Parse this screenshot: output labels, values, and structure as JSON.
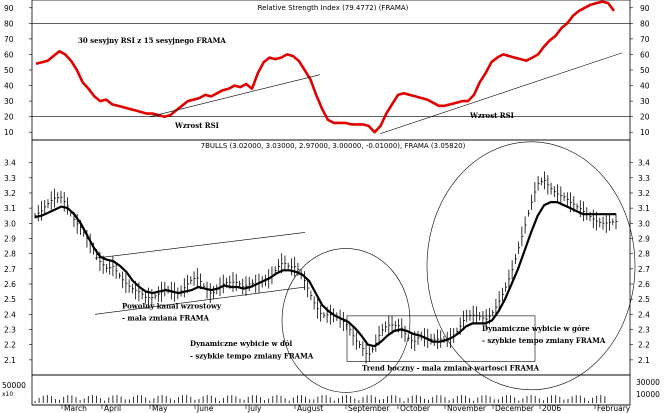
{
  "chart_data": [
    {
      "type": "line",
      "title": "Relative Strength Index (79.4772) (FRAMA)",
      "ylim": [
        5,
        95
      ],
      "yticks": [
        10,
        20,
        30,
        40,
        50,
        60,
        70,
        80,
        90
      ],
      "reference_lines": [
        20,
        80
      ],
      "series": [
        {
          "color": "#e00000",
          "x": [
            0,
            2,
            4,
            6,
            8,
            10,
            12,
            14,
            16,
            18,
            20,
            22,
            24,
            26,
            28,
            30,
            32,
            34,
            36,
            38,
            40,
            42,
            44,
            46,
            48,
            50,
            52,
            54,
            56,
            58,
            60,
            62,
            64,
            66,
            68,
            70,
            72,
            74,
            76,
            78,
            80,
            82,
            84,
            86,
            88,
            90,
            92,
            94,
            96,
            98,
            100,
            102,
            104,
            106,
            108,
            110,
            112,
            114,
            116,
            118,
            120,
            122,
            124,
            126,
            128,
            130,
            132,
            134,
            136,
            138,
            140,
            142,
            144,
            146,
            148,
            150,
            152,
            154,
            156,
            158,
            160,
            162,
            164,
            166,
            168,
            170,
            172,
            174,
            176,
            178,
            180,
            182,
            184,
            186,
            188,
            190,
            192,
            194,
            196,
            198,
            200,
            202,
            204,
            206,
            208,
            210,
            212,
            214,
            216,
            218,
            220,
            222,
            224,
            226,
            228,
            230,
            232,
            234,
            236,
            238,
            240,
            242,
            244,
            246,
            248,
            250,
            252,
            254,
            256,
            258,
            260,
            262,
            264,
            266,
            268,
            270,
            272,
            274,
            276,
            278,
            280,
            282,
            284,
            286,
            288,
            290,
            292,
            294,
            296,
            298
          ],
          "values": [
            54,
            55,
            56,
            59,
            62,
            60,
            56,
            50,
            42,
            38,
            33,
            30,
            31,
            28,
            27,
            26,
            25,
            24,
            23,
            22,
            22,
            21,
            20,
            21,
            24,
            27,
            30,
            31,
            32,
            34,
            33,
            35,
            37,
            38,
            40,
            39,
            41,
            38,
            48,
            55,
            58,
            57,
            58,
            60,
            59,
            56,
            50,
            44,
            34,
            25,
            18,
            16,
            16,
            16,
            15,
            15,
            15,
            14,
            10,
            14,
            22,
            28,
            34,
            35,
            34,
            33,
            32,
            31,
            29,
            27,
            27,
            28,
            29,
            30,
            30,
            34,
            42,
            48,
            55,
            58,
            60,
            59,
            58,
            57,
            56,
            58,
            60,
            65,
            69,
            72,
            77,
            80,
            85,
            88,
            90,
            92,
            93,
            94,
            93,
            88,
            84,
            82,
            82,
            80,
            80,
            80,
            80,
            80,
            80,
            80,
            80,
            80,
            80,
            80,
            80,
            80,
            80,
            80,
            80,
            80,
            80,
            80,
            80,
            80,
            80,
            80,
            80,
            80,
            80,
            80,
            80,
            80,
            80,
            80,
            80,
            80,
            80,
            80,
            80,
            80,
            80,
            80,
            80,
            80,
            80,
            80,
            80,
            80,
            80,
            80
          ]
        }
      ],
      "annotations": [
        "30 sesyjny RSI z 15 sesyjnego FRAMA",
        "Wzrost RSI",
        "Wzrost RSI"
      ]
    },
    {
      "type": "ohlc",
      "title": "7BULLS (3.02000, 3.03000, 2.97000, 3.00000, -0.01000), FRAMA (3.05820)",
      "ylim": [
        2.02,
        3.47
      ],
      "yticks": [
        2.1,
        2.2,
        2.3,
        2.4,
        2.5,
        2.6,
        2.7,
        2.8,
        2.9,
        3.0,
        3.1,
        3.2,
        3.3,
        3.4
      ],
      "x_months": [
        "March",
        "April",
        "May",
        "June",
        "July",
        "August",
        "September",
        "October",
        "November",
        "December",
        "2006",
        "February"
      ],
      "close_series": [
        3.05,
        3.06,
        3.1,
        3.15,
        3.18,
        3.14,
        3.05,
        2.98,
        2.88,
        2.8,
        2.72,
        2.7,
        2.74,
        2.68,
        2.62,
        2.56,
        2.52,
        2.48,
        2.5,
        2.55,
        2.6,
        2.58,
        2.54,
        2.56,
        2.6,
        2.62,
        2.58,
        2.56,
        2.6,
        2.62,
        2.6,
        2.58,
        2.55,
        2.6,
        2.62,
        2.65,
        2.66,
        2.7,
        2.72,
        2.68,
        2.7,
        2.66,
        2.58,
        2.48,
        2.4,
        2.38,
        2.36,
        2.34,
        2.32,
        2.26,
        2.22,
        2.14,
        2.18,
        2.26,
        2.3,
        2.32,
        2.34,
        2.28,
        2.24,
        2.26,
        2.22,
        2.2,
        2.22,
        2.24,
        2.28,
        2.34,
        2.4,
        2.38,
        2.36,
        2.34,
        2.4,
        2.5,
        2.6,
        2.7,
        2.82,
        2.95,
        3.1,
        3.25,
        3.3,
        3.26,
        3.22,
        3.18,
        3.12,
        3.08,
        3.06,
        3.05,
        3.04,
        3.03,
        3.02,
        3.0
      ],
      "frama_series": [
        3.04,
        3.05,
        3.07,
        3.09,
        3.11,
        3.1,
        3.06,
        3.0,
        2.92,
        2.84,
        2.78,
        2.76,
        2.75,
        2.72,
        2.68,
        2.62,
        2.58,
        2.55,
        2.54,
        2.55,
        2.56,
        2.55,
        2.54,
        2.55,
        2.56,
        2.58,
        2.57,
        2.56,
        2.57,
        2.59,
        2.58,
        2.58,
        2.57,
        2.58,
        2.6,
        2.62,
        2.64,
        2.67,
        2.69,
        2.69,
        2.68,
        2.66,
        2.62,
        2.54,
        2.46,
        2.42,
        2.39,
        2.37,
        2.35,
        2.31,
        2.26,
        2.2,
        2.19,
        2.22,
        2.26,
        2.29,
        2.3,
        2.29,
        2.27,
        2.26,
        2.24,
        2.22,
        2.22,
        2.23,
        2.25,
        2.28,
        2.32,
        2.34,
        2.34,
        2.34,
        2.36,
        2.42,
        2.5,
        2.6,
        2.7,
        2.82,
        2.94,
        3.05,
        3.12,
        3.14,
        3.14,
        3.12,
        3.1,
        3.08,
        3.06,
        3.06,
        3.06,
        3.06,
        3.06,
        3.06
      ],
      "annotations": [
        "Powolny kanal wzrostowy",
        "- mala zmiana FRAMA",
        "Dynamiczne wybicie w dól",
        "- szybkie tempo zmiany FRAMA",
        "Trend boczny - mala zmiana wartosci FRAMA",
        "Dynamiczne wybicie w góre",
        "- szybkie tempo zmiany FRAMA"
      ]
    },
    {
      "type": "bar",
      "title": "",
      "left_label": "50000",
      "left_label2": "x10",
      "right_label": "30000",
      "right_label2": "10000"
    }
  ]
}
